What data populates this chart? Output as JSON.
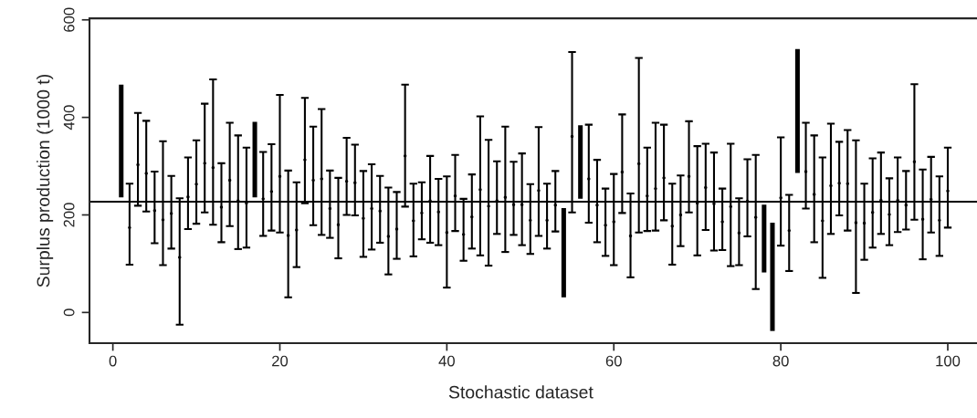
{
  "chart_data": {
    "type": "scatter",
    "xlabel": "Stochastic dataset",
    "ylabel": "Surplus production (1000 t)",
    "xlim": [
      -2.8,
      103.5
    ],
    "ylim": [
      -63,
      603
    ],
    "xticks": [
      0,
      20,
      40,
      60,
      80,
      100
    ],
    "yticks": [
      0,
      200,
      400,
      600
    ],
    "grid": false,
    "legend": false,
    "marker": "circle",
    "ref_lines": [
      {
        "axis": "y",
        "value": 227,
        "color": "#000000",
        "line_style": "solid"
      }
    ],
    "series": [
      {
        "color": "#000000",
        "x": [
          2,
          3,
          4,
          5,
          6,
          7,
          8,
          9,
          10,
          11,
          12,
          13,
          14,
          15,
          16,
          18,
          19,
          20,
          21,
          22,
          23,
          24,
          25,
          26,
          27,
          28,
          29,
          30,
          31,
          32,
          33,
          34,
          35,
          36,
          37,
          38,
          39,
          40,
          41,
          42,
          43,
          44,
          45,
          46,
          47,
          48,
          49,
          50,
          51,
          52,
          53,
          55,
          57,
          58,
          59,
          60,
          61,
          62,
          63,
          64,
          65,
          66,
          67,
          68,
          69,
          70,
          71,
          72,
          73,
          74,
          75,
          76,
          77,
          80,
          81,
          83,
          84,
          85,
          86,
          87,
          88,
          89,
          90,
          91,
          92,
          93,
          94,
          95,
          96,
          97,
          98,
          99,
          100
        ],
        "values": [
          174,
          303,
          285,
          209,
          190,
          203,
          113,
          237,
          263,
          306,
          297,
          216,
          271,
          229,
          224,
          233,
          248,
          279,
          158,
          169,
          313,
          271,
          274,
          213,
          180,
          269,
          266,
          193,
          213,
          208,
          156,
          171,
          321,
          188,
          204,
          229,
          206,
          164,
          239,
          160,
          196,
          252,
          218,
          229,
          236,
          221,
          221,
          189,
          250,
          189,
          220,
          361,
          274,
          220,
          179,
          186,
          288,
          157,
          305,
          239,
          254,
          276,
          177,
          200,
          279,
          224,
          256,
          223,
          186,
          217,
          163,
          228,
          195,
          235,
          168,
          289,
          242,
          188,
          260,
          265,
          264,
          184,
          183,
          205,
          230,
          201,
          230,
          220,
          309,
          191,
          232,
          189,
          249
        ],
        "errors": [
          [
            98,
            264
          ],
          [
            219,
            409
          ],
          [
            207,
            393
          ],
          [
            142,
            289
          ],
          [
            97,
            351
          ],
          [
            131,
            280
          ],
          [
            -25,
            234
          ],
          [
            171,
            318
          ],
          [
            182,
            353
          ],
          [
            205,
            428
          ],
          [
            180,
            478
          ],
          [
            144,
            306
          ],
          [
            177,
            389
          ],
          [
            130,
            363
          ],
          [
            133,
            338
          ],
          [
            157,
            329
          ],
          [
            168,
            345
          ],
          [
            164,
            446
          ],
          [
            31,
            291
          ],
          [
            93,
            267
          ],
          [
            224,
            440
          ],
          [
            179,
            381
          ],
          [
            159,
            417
          ],
          [
            153,
            291
          ],
          [
            111,
            276
          ],
          [
            200,
            358
          ],
          [
            199,
            344
          ],
          [
            114,
            290
          ],
          [
            129,
            304
          ],
          [
            143,
            280
          ],
          [
            78,
            256
          ],
          [
            110,
            247
          ],
          [
            217,
            467
          ],
          [
            115,
            264
          ],
          [
            150,
            267
          ],
          [
            143,
            321
          ],
          [
            138,
            274
          ],
          [
            51,
            279
          ],
          [
            167,
            323
          ],
          [
            106,
            233
          ],
          [
            131,
            283
          ],
          [
            117,
            402
          ],
          [
            96,
            354
          ],
          [
            161,
            310
          ],
          [
            124,
            381
          ],
          [
            159,
            309
          ],
          [
            138,
            326
          ],
          [
            120,
            263
          ],
          [
            157,
            380
          ],
          [
            131,
            264
          ],
          [
            166,
            290
          ],
          [
            205,
            534
          ],
          [
            184,
            385
          ],
          [
            144,
            313
          ],
          [
            116,
            254
          ],
          [
            97,
            284
          ],
          [
            204,
            406
          ],
          [
            72,
            244
          ],
          [
            164,
            522
          ],
          [
            167,
            338
          ],
          [
            168,
            389
          ],
          [
            189,
            385
          ],
          [
            98,
            264
          ],
          [
            136,
            281
          ],
          [
            205,
            392
          ],
          [
            117,
            341
          ],
          [
            169,
            346
          ],
          [
            127,
            328
          ],
          [
            128,
            254
          ],
          [
            95,
            346
          ],
          [
            97,
            234
          ],
          [
            156,
            314
          ],
          [
            48,
            323
          ],
          [
            137,
            359
          ],
          [
            85,
            241
          ],
          [
            213,
            389
          ],
          [
            144,
            363
          ],
          [
            71,
            318
          ],
          [
            161,
            387
          ],
          [
            199,
            350
          ],
          [
            168,
            374
          ],
          [
            40,
            353
          ],
          [
            108,
            264
          ],
          [
            133,
            316
          ],
          [
            161,
            328
          ],
          [
            138,
            275
          ],
          [
            165,
            318
          ],
          [
            170,
            290
          ],
          [
            190,
            468
          ],
          [
            109,
            293
          ],
          [
            164,
            319
          ],
          [
            116,
            279
          ],
          [
            174,
            338
          ]
        ]
      },
      {
        "type": "bar",
        "color": "#000000",
        "x": [
          1,
          17,
          54,
          56,
          78,
          79,
          82
        ],
        "base": [
          236,
          236,
          31,
          233,
          82,
          -38,
          286
        ],
        "values": [
          231,
          155,
          183,
          151,
          139,
          222,
          254
        ]
      }
    ]
  }
}
